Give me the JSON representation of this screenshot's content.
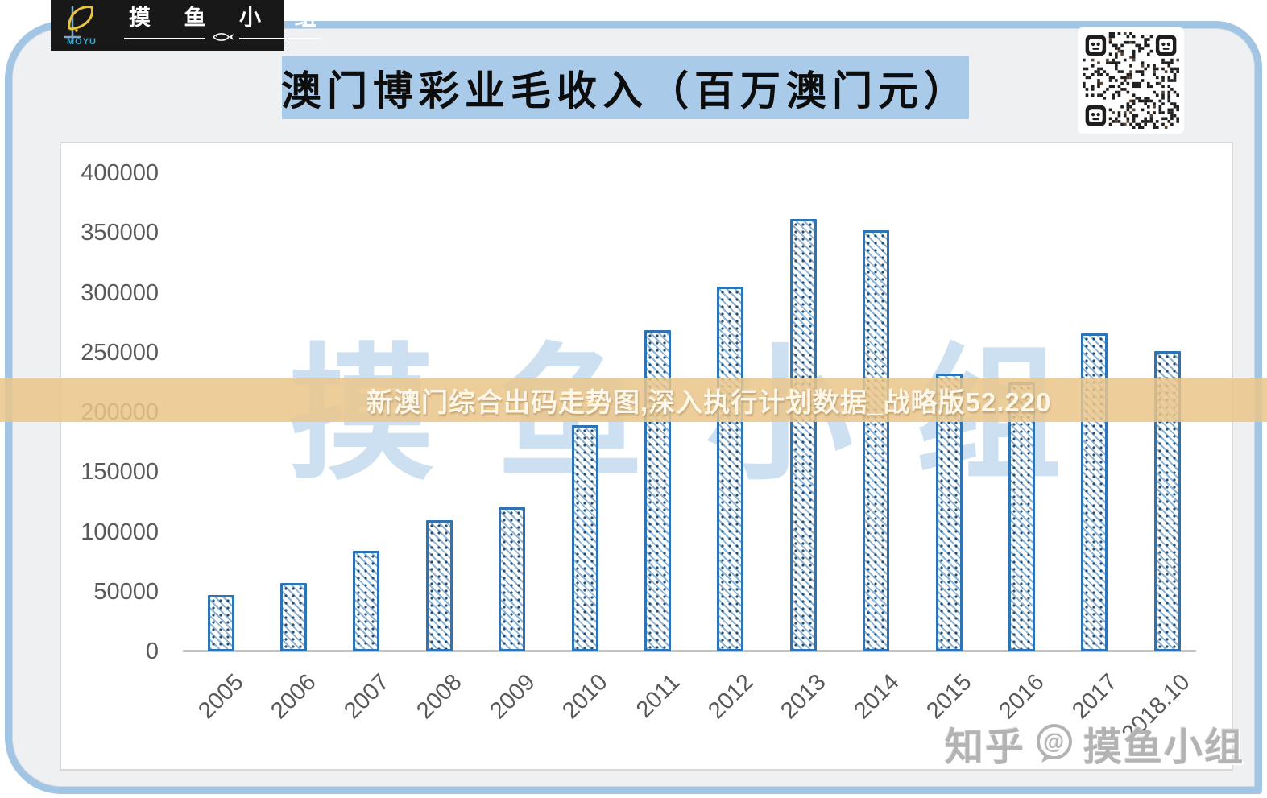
{
  "logo": {
    "brand": "MOYU",
    "group_name": "摸鱼小组",
    "group_name_spaced": "摸 鱼 小 组"
  },
  "header": {
    "title": "澳门博彩业毛收入（百万澳门元）"
  },
  "overlay_banner": {
    "text": "新澳门综合出码走势图,深入执行计划数据_战略版52.220"
  },
  "watermark_center": {
    "chars": [
      "摸",
      "鱼",
      "小",
      "组"
    ]
  },
  "watermark_bottom": {
    "site": "知乎",
    "at": "@",
    "name": "摸鱼小组"
  },
  "colors": {
    "bar_border": "#2e74b5",
    "bar_hatch": "#2e74b5",
    "banner_bg": "#eac68b",
    "title_bg": "#a9cbe9",
    "card_border": "#a3c5e4",
    "axis_text": "#595959",
    "center_watermark": "#cde0f2"
  },
  "chart_data": {
    "type": "bar",
    "title": "澳门博彩业毛收入（百万澳门元）",
    "xlabel": "",
    "ylabel": "",
    "categories": [
      "2005",
      "2006",
      "2007",
      "2008",
      "2009",
      "2010",
      "2011",
      "2012",
      "2013",
      "2014",
      "2015",
      "2016",
      "2017",
      "2018.10"
    ],
    "values": [
      47000,
      57500,
      84000,
      110000,
      120500,
      189500,
      269000,
      305000,
      361500,
      352500,
      232000,
      225000,
      266000,
      251500
    ],
    "ylim": [
      0,
      400000
    ],
    "ytick_step": 50000,
    "yticks": [
      "0",
      "50000",
      "100000",
      "150000",
      "200000",
      "250000",
      "300000",
      "350000",
      "400000"
    ],
    "grid": false,
    "legend": "none",
    "bar_pattern": "diagonal-hatch-with-dots"
  }
}
